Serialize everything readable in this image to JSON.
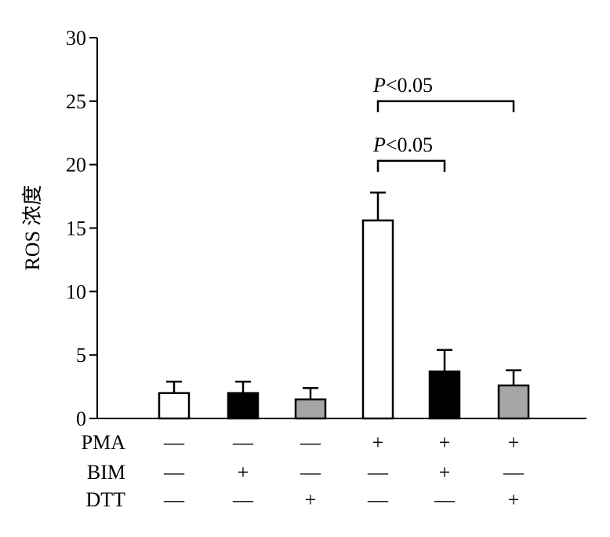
{
  "chart_data": {
    "type": "bar",
    "ylabel": "ROS 浓度",
    "ylim": [
      0,
      30
    ],
    "yticks": [
      "0",
      "5",
      "10",
      "15",
      "20",
      "25",
      "30"
    ],
    "grid": false,
    "bars": [
      {
        "value": 2.0,
        "error": 0.9,
        "fill": "#ffffff"
      },
      {
        "value": 2.0,
        "error": 0.9,
        "fill": "#000000"
      },
      {
        "value": 1.5,
        "error": 0.9,
        "fill": "#a6a6a6"
      },
      {
        "value": 15.6,
        "error": 2.2,
        "fill": "#ffffff"
      },
      {
        "value": 3.7,
        "error": 1.7,
        "fill": "#000000"
      },
      {
        "value": 2.6,
        "error": 1.2,
        "fill": "#a6a6a6"
      }
    ],
    "conditions": [
      {
        "label": "PMA",
        "signs": [
          "—",
          "—",
          "—",
          "+",
          "+",
          "+"
        ]
      },
      {
        "label": "BIM",
        "signs": [
          "—",
          "+",
          "—",
          "—",
          "+",
          "—"
        ]
      },
      {
        "label": "DTT",
        "signs": [
          "—",
          "—",
          "+",
          "—",
          "—",
          "+"
        ]
      }
    ],
    "comparisons": [
      {
        "from": 4,
        "to": 6,
        "p_italic": "P",
        "p_rest": "<0.05",
        "level": 25.0
      },
      {
        "from": 4,
        "to": 5,
        "p_italic": "P",
        "p_rest": "<0.05",
        "level": 20.3
      }
    ]
  }
}
